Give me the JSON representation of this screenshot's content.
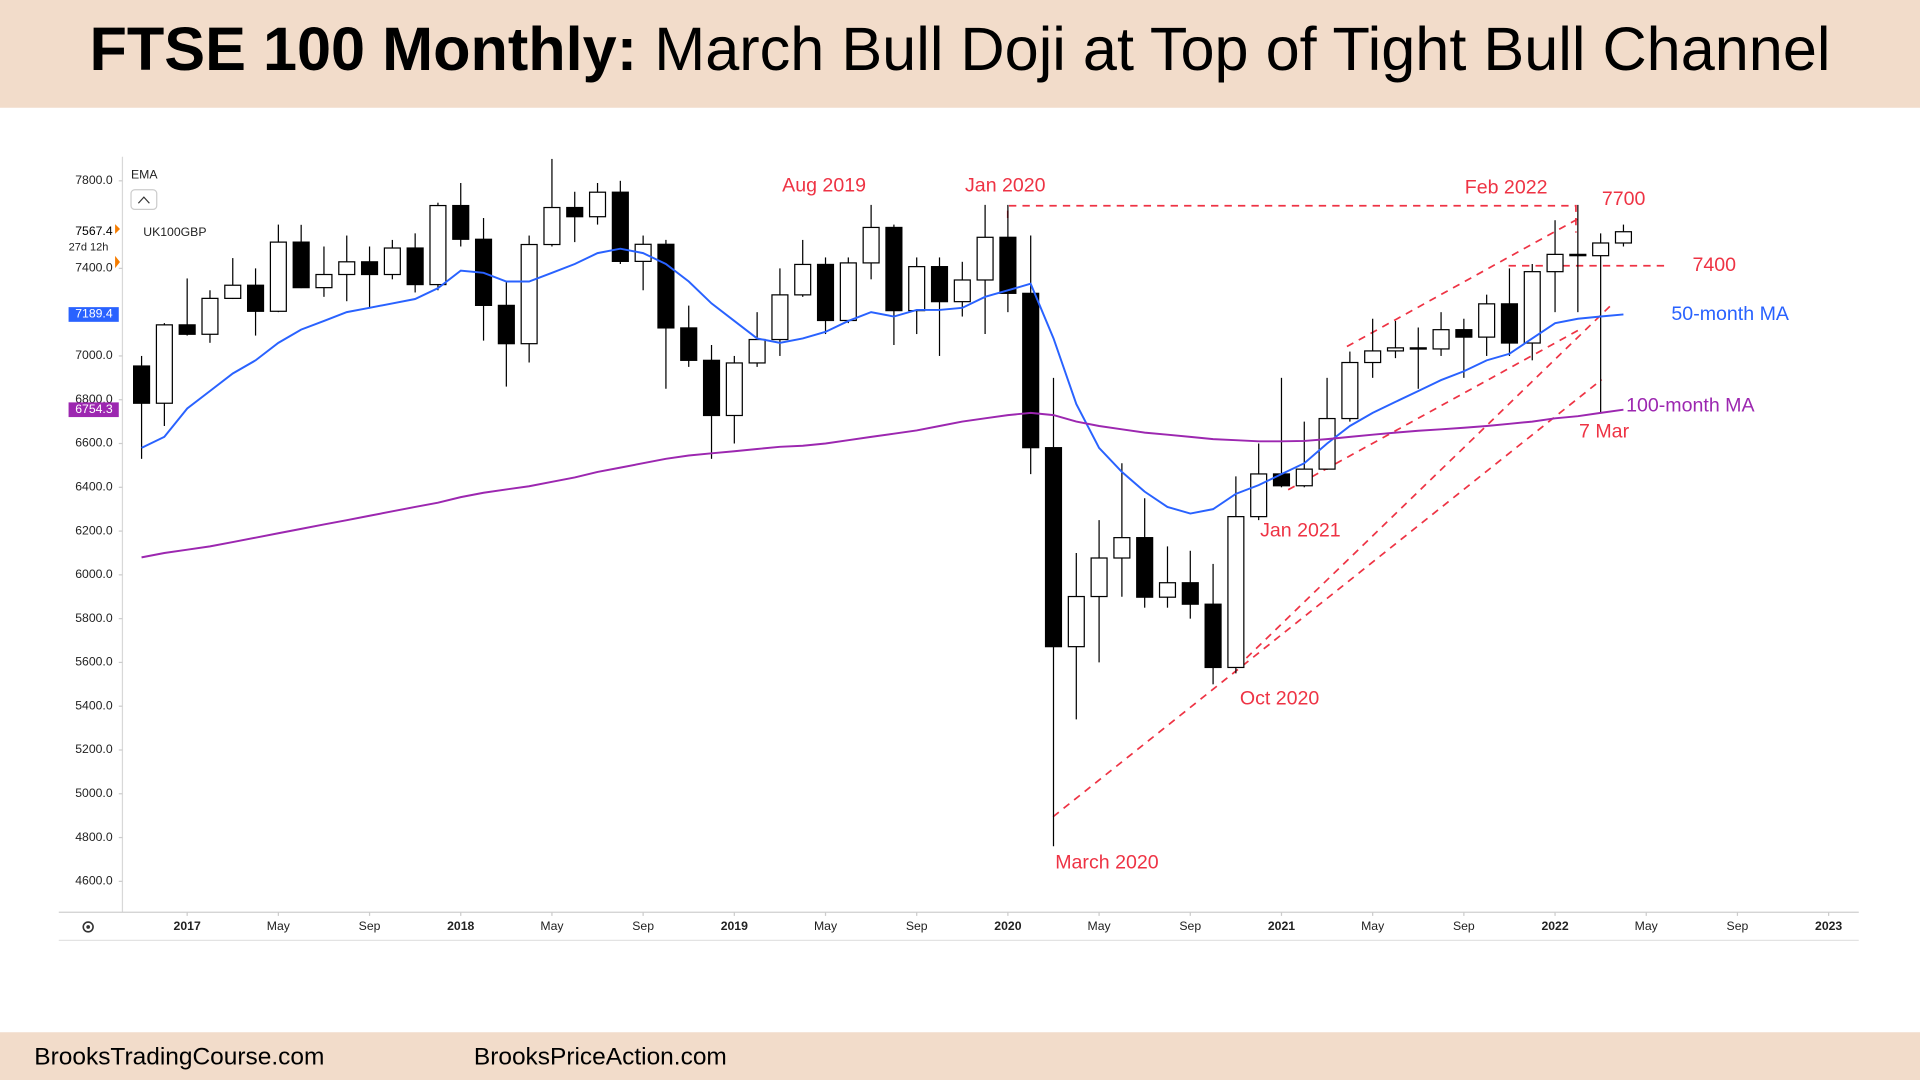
{
  "header": {
    "title_bold": "FTSE 100 Monthly:",
    "title": "March Bull Doji at Top of Tight Bull Channel"
  },
  "chart_data": {
    "type": "candlestick",
    "symbol": "UK100GBP",
    "indicator": "EMA",
    "countdown": "27d 12h",
    "x": [
      "2016-11",
      "2016-12",
      "2017-01",
      "2017-02",
      "2017-03",
      "2017-04",
      "2017-05",
      "2017-06",
      "2017-07",
      "2017-08",
      "2017-09",
      "2017-10",
      "2017-11",
      "2017-12",
      "2018-01",
      "2018-02",
      "2018-03",
      "2018-04",
      "2018-05",
      "2018-06",
      "2018-07",
      "2018-08",
      "2018-09",
      "2018-10",
      "2018-11",
      "2018-12",
      "2019-01",
      "2019-02",
      "2019-03",
      "2019-04",
      "2019-05",
      "2019-06",
      "2019-07",
      "2019-08",
      "2019-09",
      "2019-10",
      "2019-11",
      "2019-12",
      "2020-01",
      "2020-02",
      "2020-03",
      "2020-04",
      "2020-05",
      "2020-06",
      "2020-07",
      "2020-08",
      "2020-09",
      "2020-10",
      "2020-11",
      "2020-12",
      "2021-01",
      "2021-02",
      "2021-03",
      "2021-04",
      "2021-05",
      "2021-06",
      "2021-07",
      "2021-08",
      "2021-09",
      "2021-10",
      "2021-11",
      "2021-12",
      "2022-01",
      "2022-02",
      "2022-03",
      "2022-04"
    ],
    "open": [
      6954,
      6784,
      7142,
      7099,
      7263,
      7323,
      7204,
      7520,
      7312,
      7372,
      7430,
      7372,
      7493,
      7326,
      7687,
      7533,
      7231,
      7056,
      7509,
      7678,
      7636,
      7748,
      7432,
      7510,
      7128,
      6980,
      6728,
      6968,
      7075,
      7279,
      7418,
      7162,
      7425,
      7587,
      7207,
      7408,
      7248,
      7347,
      7542,
      7286,
      6581,
      5672,
      5901,
      6077,
      6170,
      5898,
      5964,
      5866,
      5577,
      6266,
      6461,
      6407,
      6483,
      6714,
      6970,
      7023,
      7037,
      7032,
      7120,
      7086,
      7238,
      7059,
      7385,
      7464,
      7458,
      7516
    ],
    "high": [
      7000,
      7150,
      7354,
      7300,
      7447,
      7400,
      7600,
      7599,
      7500,
      7550,
      7500,
      7530,
      7560,
      7700,
      7790,
      7630,
      7340,
      7550,
      7900,
      7750,
      7790,
      7800,
      7550,
      7530,
      7230,
      7050,
      7000,
      7200,
      7400,
      7530,
      7450,
      7450,
      7690,
      7600,
      7450,
      7450,
      7430,
      7690,
      7690,
      7550,
      6900,
      6100,
      6250,
      6510,
      6350,
      6130,
      6110,
      6050,
      6450,
      6600,
      6900,
      6700,
      6900,
      7020,
      7170,
      7160,
      7130,
      7200,
      7170,
      7280,
      7400,
      7420,
      7620,
      7690,
      7560,
      7600
    ],
    "low": [
      6530,
      6680,
      7093,
      7060,
      7260,
      7093,
      7200,
      7310,
      7270,
      7250,
      7220,
      7350,
      7290,
      7300,
      7500,
      7070,
      6860,
      6970,
      7500,
      7520,
      7600,
      7420,
      7300,
      6850,
      6950,
      6530,
      6600,
      6950,
      7000,
      7270,
      7100,
      7150,
      7350,
      7050,
      7100,
      7000,
      7180,
      7100,
      7200,
      6460,
      4760,
      5340,
      5600,
      5900,
      5850,
      5850,
      5800,
      5500,
      5550,
      6250,
      6400,
      6400,
      6480,
      6700,
      6900,
      6990,
      6850,
      7000,
      6900,
      7000,
      7000,
      6980,
      7200,
      7200,
      6740,
      7500
    ],
    "close": [
      6784,
      7142,
      7099,
      7263,
      7323,
      7204,
      7520,
      7312,
      7372,
      7430,
      7372,
      7493,
      7326,
      7687,
      7533,
      7231,
      7056,
      7509,
      7678,
      7636,
      7748,
      7432,
      7510,
      7128,
      6980,
      6728,
      6968,
      7075,
      7279,
      7418,
      7162,
      7425,
      7587,
      7207,
      7408,
      7248,
      7347,
      7542,
      7286,
      6581,
      5672,
      5901,
      6077,
      6170,
      5898,
      5964,
      5866,
      5577,
      6266,
      6461,
      6407,
      6483,
      6714,
      6970,
      7023,
      7037,
      7032,
      7120,
      7086,
      7238,
      7059,
      7385,
      7464,
      7458,
      7516,
      7567.4
    ],
    "up_color": "#ffffff",
    "down_color": "#000000",
    "series": [
      {
        "name": "50-month MA",
        "color": "#2962ff",
        "values": [
          6580,
          6630,
          6760,
          6840,
          6920,
          6980,
          7060,
          7120,
          7160,
          7200,
          7220,
          7240,
          7260,
          7310,
          7390,
          7380,
          7340,
          7340,
          7380,
          7420,
          7470,
          7490,
          7470,
          7420,
          7340,
          7240,
          7160,
          7080,
          7060,
          7080,
          7110,
          7160,
          7200,
          7180,
          7210,
          7210,
          7220,
          7270,
          7300,
          7330,
          7080,
          6780,
          6580,
          6470,
          6380,
          6310,
          6280,
          6300,
          6370,
          6410,
          6460,
          6510,
          6600,
          6680,
          6740,
          6790,
          6840,
          6890,
          6930,
          6980,
          7010,
          7080,
          7150,
          7170,
          7180,
          7189.4
        ]
      },
      {
        "name": "100-month MA",
        "color": "#9c27b0",
        "values": [
          6080,
          6100,
          6115,
          6130,
          6150,
          6170,
          6190,
          6210,
          6230,
          6250,
          6270,
          6290,
          6310,
          6330,
          6355,
          6375,
          6390,
          6405,
          6425,
          6445,
          6470,
          6490,
          6510,
          6530,
          6545,
          6555,
          6565,
          6575,
          6585,
          6590,
          6600,
          6615,
          6630,
          6645,
          6660,
          6680,
          6700,
          6715,
          6730,
          6740,
          6730,
          6700,
          6680,
          6665,
          6650,
          6640,
          6630,
          6620,
          6615,
          6610,
          6610,
          6612,
          6620,
          6630,
          6640,
          6650,
          6658,
          6665,
          6672,
          6680,
          6690,
          6700,
          6715,
          6725,
          6740,
          6754.3
        ]
      }
    ],
    "xlim": [
      "2016-10",
      "2023-02"
    ],
    "xticks": [
      {
        "value": "2017-01",
        "label": "2017"
      },
      {
        "value": "2017-05",
        "label": "May"
      },
      {
        "value": "2017-09",
        "label": "Sep"
      },
      {
        "value": "2018-01",
        "label": "2018"
      },
      {
        "value": "2018-05",
        "label": "May"
      },
      {
        "value": "2018-09",
        "label": "Sep"
      },
      {
        "value": "2019-01",
        "label": "2019"
      },
      {
        "value": "2019-05",
        "label": "May"
      },
      {
        "value": "2019-09",
        "label": "Sep"
      },
      {
        "value": "2020-01",
        "label": "2020"
      },
      {
        "value": "2020-05",
        "label": "May"
      },
      {
        "value": "2020-09",
        "label": "Sep"
      },
      {
        "value": "2021-01",
        "label": "2021"
      },
      {
        "value": "2021-05",
        "label": "May"
      },
      {
        "value": "2021-09",
        "label": "Sep"
      },
      {
        "value": "2022-01",
        "label": "2022"
      },
      {
        "value": "2022-05",
        "label": "May"
      },
      {
        "value": "2022-09",
        "label": "Sep"
      },
      {
        "value": "2023-01",
        "label": "2023"
      }
    ],
    "ylim": [
      4470,
      7910
    ],
    "yticks": [
      {
        "value": 7800,
        "label": "7800.0"
      },
      {
        "value": 7400,
        "label": "7400.0"
      },
      {
        "value": 7000,
        "label": "7000.0"
      },
      {
        "value": 6800,
        "label": "6800.0"
      },
      {
        "value": 6600,
        "label": "6600.0"
      },
      {
        "value": 6400,
        "label": "6400.0"
      },
      {
        "value": 6200,
        "label": "6200.0"
      },
      {
        "value": 6000,
        "label": "6000.0"
      },
      {
        "value": 5800,
        "label": "5800.0"
      },
      {
        "value": 5600,
        "label": "5600.0"
      },
      {
        "value": 5400,
        "label": "5400.0"
      },
      {
        "value": 5200,
        "label": "5200.0"
      },
      {
        "value": 5000,
        "label": "5000.0"
      },
      {
        "value": 4800,
        "label": "4800.0"
      },
      {
        "value": 4600,
        "label": "4600.0"
      }
    ],
    "annotations": [
      "Aug 2019",
      "Jan 2020",
      "Feb 2022",
      "7700",
      "7400",
      "7 Mar",
      "Jan 2021",
      "Oct 2020",
      "March 2020"
    ]
  },
  "footer": {
    "left": "BrooksTradingCourse.com",
    "right": "BrooksPriceAction.com"
  }
}
